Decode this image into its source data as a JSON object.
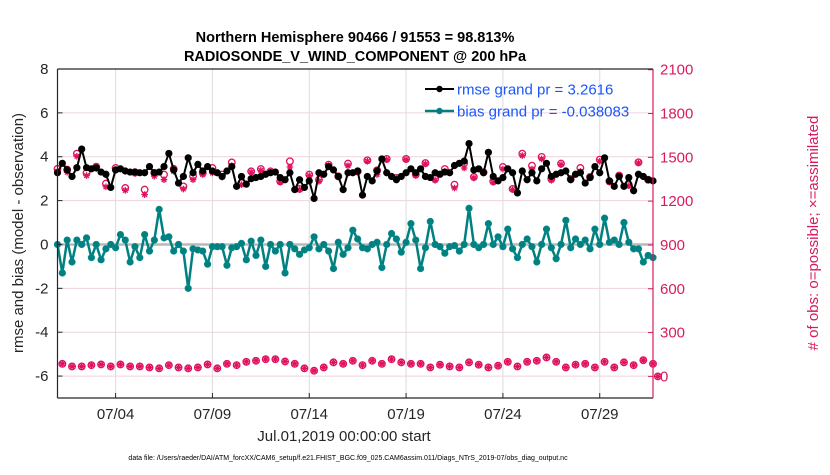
{
  "chart_data": {
    "type": "line",
    "title": [
      "Northern Hemisphere 90466 / 91553 = 98.813%",
      "RADIOSONDE_V_WIND_COMPONENT @ 200 hPa"
    ],
    "xlabel": "Jul.01,2019 00:00:00 start",
    "ylabel": "rmse and bias (model - observation)",
    "ylabel_right": "# of obs: o=possible; ×=assimilated",
    "footer": "data file: /Users/raeder/DAI/ATM_forcXX/CAM6_setup/f.e21.FHIST_BGC.f09_025.CAM6assim.011/Diags_NTrS_2019-07/obs_diag_output.nc",
    "time_start": "2019-07-01 00:00",
    "time_step_hours": 6,
    "xlim": [
      "2019-07-01 00:00",
      "2019-07-31 18:00"
    ],
    "x_ticks": [
      {
        "date": "2019-07-04",
        "label": "07/04"
      },
      {
        "date": "2019-07-09",
        "label": "07/09"
      },
      {
        "date": "2019-07-14",
        "label": "07/14"
      },
      {
        "date": "2019-07-19",
        "label": "07/19"
      },
      {
        "date": "2019-07-24",
        "label": "07/24"
      },
      {
        "date": "2019-07-29",
        "label": "07/29"
      }
    ],
    "ylim": [
      -7,
      8
    ],
    "y_ticks": [
      -6,
      -4,
      -2,
      0,
      2,
      4,
      6,
      8
    ],
    "ylim_right": [
      -148,
      2105
    ],
    "y_ticks_right": [
      0,
      300,
      600,
      900,
      1200,
      1500,
      1800,
      2100
    ],
    "grid": true,
    "legend_position": "top-right",
    "colors": {
      "rmse": "#000000",
      "bias": "#008080",
      "obs": "#e0115f",
      "legend_text": "#1a55ff",
      "zero_line": "#b8b8b8"
    },
    "series": [
      {
        "name": "rmse grand pr = 3.2616",
        "values": [
          3.27,
          3.7,
          3.4,
          3.1,
          3.5,
          4.35,
          3.5,
          3.45,
          3.5,
          3.3,
          3.2,
          2.6,
          3.4,
          3.45,
          3.35,
          3.3,
          3.3,
          3.27,
          3.27,
          3.55,
          3.27,
          3.3,
          3.55,
          4.15,
          3.4,
          2.8,
          3.1,
          3.95,
          3.27,
          3.65,
          3.35,
          3.55,
          3.35,
          3.27,
          3.1,
          3.35,
          3.55,
          2.65,
          3.1,
          2.75,
          3.0,
          3.05,
          3.1,
          3.2,
          3.27,
          3.3,
          3.05,
          2.95,
          3.27,
          2.5,
          2.95,
          2.6,
          2.9,
          2.1,
          3.27,
          3.2,
          3.55,
          3.4,
          3.1,
          2.5,
          3.27,
          3.27,
          3.35,
          2.25,
          3.1,
          2.9,
          3.35,
          3.9,
          3.27,
          3.1,
          2.95,
          3.1,
          3.27,
          3.45,
          3.27,
          3.45,
          3.1,
          3.05,
          3.27,
          3.2,
          3.3,
          3.27,
          3.6,
          3.7,
          3.8,
          4.6,
          3.4,
          3.45,
          3.27,
          4.2,
          3.1,
          2.9,
          3.05,
          3.45,
          3.27,
          2.35,
          3.35,
          2.95,
          3.27,
          2.9,
          3.45,
          3.7,
          3.1,
          3.2,
          3.27,
          3.35,
          2.95,
          3.2,
          3.27,
          2.8,
          3.05,
          3.55,
          3.27,
          3.95,
          2.9,
          2.65,
          3.1,
          2.65,
          3.05,
          2.45,
          3.2,
          3.1,
          2.95,
          2.9
        ]
      },
      {
        "name": "bias grand pr = -0.038083",
        "values": [
          0.0,
          -1.3,
          0.2,
          -0.8,
          0.2,
          0.0,
          0.3,
          -0.6,
          0.0,
          -0.7,
          -0.2,
          0.0,
          -0.15,
          0.45,
          0.2,
          -0.8,
          -0.1,
          -0.6,
          0.45,
          -0.3,
          0.2,
          1.6,
          0.3,
          0.35,
          -0.3,
          0.0,
          -0.3,
          -2.0,
          -0.2,
          -0.25,
          -0.3,
          -0.9,
          -0.1,
          -0.1,
          -0.1,
          -0.95,
          -0.15,
          -0.1,
          0.05,
          -0.7,
          0.15,
          -0.5,
          0.2,
          -1.0,
          0.0,
          -0.3,
          0.0,
          -1.3,
          0.0,
          -0.2,
          -0.45,
          -0.25,
          -0.15,
          0.35,
          -0.2,
          0.0,
          -0.3,
          -1.1,
          0.1,
          -0.45,
          -0.15,
          0.65,
          0.25,
          -0.15,
          -0.2,
          0.0,
          0.1,
          -1.05,
          0.0,
          0.5,
          0.25,
          -0.35,
          0.1,
          0.95,
          0.2,
          -1.1,
          -0.15,
          1.05,
          0.0,
          -0.1,
          -0.4,
          -0.1,
          -0.05,
          -0.3,
          0.0,
          1.65,
          0.0,
          -0.15,
          0.0,
          0.95,
          0.0,
          0.35,
          -0.1,
          0.7,
          -0.2,
          -0.6,
          0.0,
          0.25,
          -0.1,
          -0.8,
          0.0,
          0.7,
          -0.15,
          -0.65,
          0.0,
          1.1,
          -0.15,
          0.25,
          0.0,
          0.2,
          -0.2,
          0.7,
          0.0,
          1.2,
          0.1,
          0.2,
          0.0,
          1.0,
          0.1,
          -0.2,
          -0.2,
          -0.8,
          -0.5,
          -0.6
        ]
      }
    ],
    "obs_possible": [
      1421,
      86,
      1416,
      68,
      1525,
      68,
      1393,
      77,
      1436,
      82,
      1320,
      68,
      1427,
      82,
      1290,
      68,
      1398,
      68,
      1279,
      61,
      1393,
      55,
      1382,
      77,
      1421,
      61,
      1301,
      55,
      1371,
      61,
      1393,
      82,
      1427,
      55,
      1382,
      86,
      1465,
      77,
      1324,
      100,
      1404,
      107,
      1420,
      118,
      1404,
      118,
      1336,
      102,
      1473,
      86,
      1284,
      55,
      1382,
      39,
      1347,
      61,
      1450,
      96,
      1370,
      86,
      1457,
      107,
      1404,
      77,
      1480,
      107,
      1411,
      86,
      1489,
      118,
      1359,
      96,
      1489,
      86,
      1382,
      86,
      1461,
      61,
      1352,
      80,
      1420,
      68,
      1313,
      61,
      1461,
      96,
      1366,
      80,
      1398,
      61,
      1336,
      73,
      1434,
      100,
      1284,
      68,
      1525,
      100,
      1443,
      107,
      1503,
      130,
      1352,
      100,
      1457,
      61,
      1352,
      80,
      1427,
      86,
      1366,
      61,
      1484,
      100,
      1336,
      61,
      1375,
      96,
      1313,
      77,
      1466,
      111,
      1347,
      86,
      0
    ],
    "obs_assimilated": [
      1404,
      86,
      1398,
      68,
      1507,
      68,
      1375,
      77,
      1422,
      82,
      1298,
      68,
      1411,
      82,
      1274,
      68,
      1388,
      68,
      1245,
      61,
      1371,
      55,
      1347,
      77,
      1404,
      61,
      1283,
      55,
      1347,
      61,
      1382,
      82,
      1393,
      55,
      1365,
      86,
      1443,
      77,
      1313,
      100,
      1398,
      107,
      1411,
      118,
      1398,
      118,
      1329,
      102,
      1434,
      86,
      1279,
      55,
      1375,
      39,
      1336,
      61,
      1443,
      96,
      1366,
      86,
      1443,
      107,
      1398,
      77,
      1473,
      107,
      1382,
      86,
      1484,
      118,
      1359,
      96,
      1484,
      86,
      1375,
      86,
      1455,
      61,
      1343,
      80,
      1404,
      68,
      1290,
      61,
      1427,
      96,
      1359,
      80,
      1393,
      61,
      1329,
      73,
      1420,
      100,
      1279,
      68,
      1512,
      100,
      1420,
      107,
      1489,
      130,
      1343,
      100,
      1450,
      61,
      1347,
      80,
      1404,
      86,
      1359,
      61,
      1473,
      100,
      1329,
      61,
      1370,
      96,
      1306,
      77,
      1461,
      111,
      1343,
      86,
      0
    ]
  }
}
